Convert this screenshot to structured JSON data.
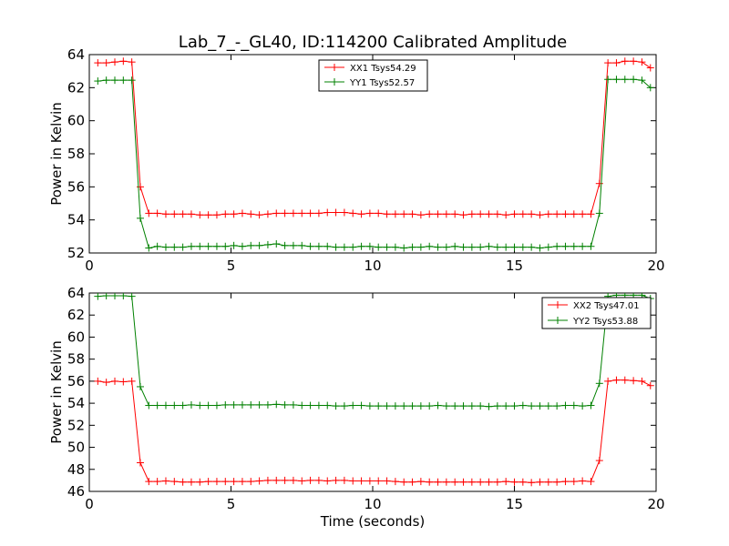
{
  "chart_data": [
    {
      "type": "line",
      "title": "Lab_7_-_GL40, ID:114200 Calibrated Amplitude",
      "xlabel": "",
      "ylabel": "Power in Kelvin",
      "xlim": [
        0,
        20
      ],
      "ylim": [
        52,
        64
      ],
      "xticks": [
        0,
        5,
        10,
        15,
        20
      ],
      "yticks": [
        52,
        54,
        56,
        58,
        60,
        62,
        64
      ],
      "grid": false,
      "legend_position": "top-center",
      "series": [
        {
          "name": "XX1 Tsys54.29",
          "color": "#ff0000",
          "x": [
            0.3,
            0.6,
            0.9,
            1.2,
            1.5,
            1.8,
            2.1,
            2.4,
            2.7,
            3.0,
            3.3,
            3.6,
            3.9,
            4.2,
            4.5,
            4.8,
            5.1,
            5.4,
            5.7,
            6.0,
            6.3,
            6.6,
            6.9,
            7.2,
            7.5,
            7.8,
            8.1,
            8.4,
            8.7,
            9.0,
            9.3,
            9.6,
            9.9,
            10.2,
            10.5,
            10.8,
            11.1,
            11.4,
            11.7,
            12.0,
            12.3,
            12.6,
            12.9,
            13.2,
            13.5,
            13.8,
            14.1,
            14.4,
            14.7,
            15.0,
            15.3,
            15.6,
            15.9,
            16.2,
            16.5,
            16.8,
            17.1,
            17.4,
            17.7,
            18.0,
            18.3,
            18.6,
            18.9,
            19.2,
            19.5,
            19.8
          ],
          "y": [
            63.5,
            63.5,
            63.55,
            63.6,
            63.55,
            56.0,
            54.4,
            54.4,
            54.35,
            54.35,
            54.35,
            54.35,
            54.3,
            54.3,
            54.3,
            54.35,
            54.35,
            54.4,
            54.35,
            54.3,
            54.35,
            54.4,
            54.4,
            54.4,
            54.4,
            54.4,
            54.4,
            54.45,
            54.45,
            54.45,
            54.4,
            54.35,
            54.4,
            54.4,
            54.35,
            54.35,
            54.35,
            54.35,
            54.3,
            54.35,
            54.35,
            54.35,
            54.35,
            54.3,
            54.35,
            54.35,
            54.35,
            54.35,
            54.3,
            54.35,
            54.35,
            54.35,
            54.3,
            54.35,
            54.35,
            54.35,
            54.35,
            54.35,
            54.35,
            56.2,
            63.5,
            63.5,
            63.6,
            63.6,
            63.55,
            63.2
          ]
        },
        {
          "name": "YY1 Tsys52.57",
          "color": "#008000",
          "x": [
            0.3,
            0.6,
            0.9,
            1.2,
            1.5,
            1.8,
            2.1,
            2.4,
            2.7,
            3.0,
            3.3,
            3.6,
            3.9,
            4.2,
            4.5,
            4.8,
            5.1,
            5.4,
            5.7,
            6.0,
            6.3,
            6.6,
            6.9,
            7.2,
            7.5,
            7.8,
            8.1,
            8.4,
            8.7,
            9.0,
            9.3,
            9.6,
            9.9,
            10.2,
            10.5,
            10.8,
            11.1,
            11.4,
            11.7,
            12.0,
            12.3,
            12.6,
            12.9,
            13.2,
            13.5,
            13.8,
            14.1,
            14.4,
            14.7,
            15.0,
            15.3,
            15.6,
            15.9,
            16.2,
            16.5,
            16.8,
            17.1,
            17.4,
            17.7,
            18.0,
            18.3,
            18.6,
            18.9,
            19.2,
            19.5,
            19.8
          ],
          "y": [
            62.4,
            62.45,
            62.45,
            62.45,
            62.45,
            54.1,
            52.3,
            52.4,
            52.35,
            52.35,
            52.35,
            52.4,
            52.4,
            52.4,
            52.4,
            52.4,
            52.45,
            52.4,
            52.45,
            52.45,
            52.5,
            52.55,
            52.45,
            52.45,
            52.45,
            52.4,
            52.4,
            52.4,
            52.35,
            52.35,
            52.35,
            52.4,
            52.4,
            52.35,
            52.35,
            52.35,
            52.3,
            52.35,
            52.35,
            52.4,
            52.35,
            52.35,
            52.4,
            52.35,
            52.35,
            52.35,
            52.4,
            52.35,
            52.35,
            52.35,
            52.35,
            52.35,
            52.3,
            52.35,
            52.4,
            52.4,
            52.4,
            52.4,
            52.4,
            54.4,
            62.5,
            62.5,
            62.5,
            62.5,
            62.45,
            62.0
          ]
        }
      ]
    },
    {
      "type": "line",
      "title": "",
      "xlabel": "Time (seconds)",
      "ylabel": "Power in Kelvin",
      "xlim": [
        0,
        20
      ],
      "ylim": [
        46,
        64
      ],
      "xticks": [
        0,
        5,
        10,
        15,
        20
      ],
      "yticks": [
        46,
        48,
        50,
        52,
        54,
        56,
        58,
        60,
        62,
        64
      ],
      "grid": false,
      "legend_position": "top-right",
      "series": [
        {
          "name": "XX2 Tsys47.01",
          "color": "#ff0000",
          "x": [
            0.3,
            0.6,
            0.9,
            1.2,
            1.5,
            1.8,
            2.1,
            2.4,
            2.7,
            3.0,
            3.3,
            3.6,
            3.9,
            4.2,
            4.5,
            4.8,
            5.1,
            5.4,
            5.7,
            6.0,
            6.3,
            6.6,
            6.9,
            7.2,
            7.5,
            7.8,
            8.1,
            8.4,
            8.7,
            9.0,
            9.3,
            9.6,
            9.9,
            10.2,
            10.5,
            10.8,
            11.1,
            11.4,
            11.7,
            12.0,
            12.3,
            12.6,
            12.9,
            13.2,
            13.5,
            13.8,
            14.1,
            14.4,
            14.7,
            15.0,
            15.3,
            15.6,
            15.9,
            16.2,
            16.5,
            16.8,
            17.1,
            17.4,
            17.7,
            18.0,
            18.3,
            18.6,
            18.9,
            19.2,
            19.5,
            19.8
          ],
          "y": [
            56.0,
            55.9,
            56.0,
            55.95,
            56.0,
            48.6,
            46.9,
            46.9,
            46.95,
            46.9,
            46.85,
            46.85,
            46.85,
            46.9,
            46.9,
            46.9,
            46.9,
            46.9,
            46.9,
            46.95,
            47.0,
            47.0,
            47.0,
            47.0,
            46.95,
            47.0,
            47.0,
            46.95,
            47.0,
            47.0,
            46.95,
            46.95,
            46.95,
            46.95,
            46.95,
            46.9,
            46.85,
            46.85,
            46.9,
            46.85,
            46.85,
            46.85,
            46.85,
            46.85,
            46.85,
            46.85,
            46.85,
            46.85,
            46.9,
            46.85,
            46.85,
            46.8,
            46.85,
            46.85,
            46.85,
            46.9,
            46.9,
            46.95,
            46.9,
            48.8,
            56.0,
            56.1,
            56.1,
            56.05,
            56.0,
            55.6
          ]
        },
        {
          "name": "YY2 Tsys53.88",
          "color": "#008000",
          "x": [
            0.3,
            0.6,
            0.9,
            1.2,
            1.5,
            1.8,
            2.1,
            2.4,
            2.7,
            3.0,
            3.3,
            3.6,
            3.9,
            4.2,
            4.5,
            4.8,
            5.1,
            5.4,
            5.7,
            6.0,
            6.3,
            6.6,
            6.9,
            7.2,
            7.5,
            7.8,
            8.1,
            8.4,
            8.7,
            9.0,
            9.3,
            9.6,
            9.9,
            10.2,
            10.5,
            10.8,
            11.1,
            11.4,
            11.7,
            12.0,
            12.3,
            12.6,
            12.9,
            13.2,
            13.5,
            13.8,
            14.1,
            14.4,
            14.7,
            15.0,
            15.3,
            15.6,
            15.9,
            16.2,
            16.5,
            16.8,
            17.1,
            17.4,
            17.7,
            18.0,
            18.3,
            18.6,
            18.9,
            19.2,
            19.5,
            19.8
          ],
          "y": [
            63.7,
            63.75,
            63.75,
            63.75,
            63.7,
            55.5,
            53.8,
            53.8,
            53.8,
            53.8,
            53.8,
            53.85,
            53.8,
            53.8,
            53.8,
            53.85,
            53.85,
            53.85,
            53.85,
            53.85,
            53.85,
            53.9,
            53.85,
            53.85,
            53.8,
            53.8,
            53.8,
            53.8,
            53.75,
            53.75,
            53.8,
            53.8,
            53.75,
            53.75,
            53.75,
            53.75,
            53.75,
            53.75,
            53.75,
            53.75,
            53.8,
            53.75,
            53.75,
            53.75,
            53.75,
            53.75,
            53.7,
            53.75,
            53.75,
            53.75,
            53.8,
            53.75,
            53.75,
            53.75,
            53.75,
            53.8,
            53.8,
            53.75,
            53.8,
            55.8,
            63.7,
            63.8,
            63.8,
            63.8,
            63.8,
            63.5
          ]
        }
      ]
    }
  ]
}
